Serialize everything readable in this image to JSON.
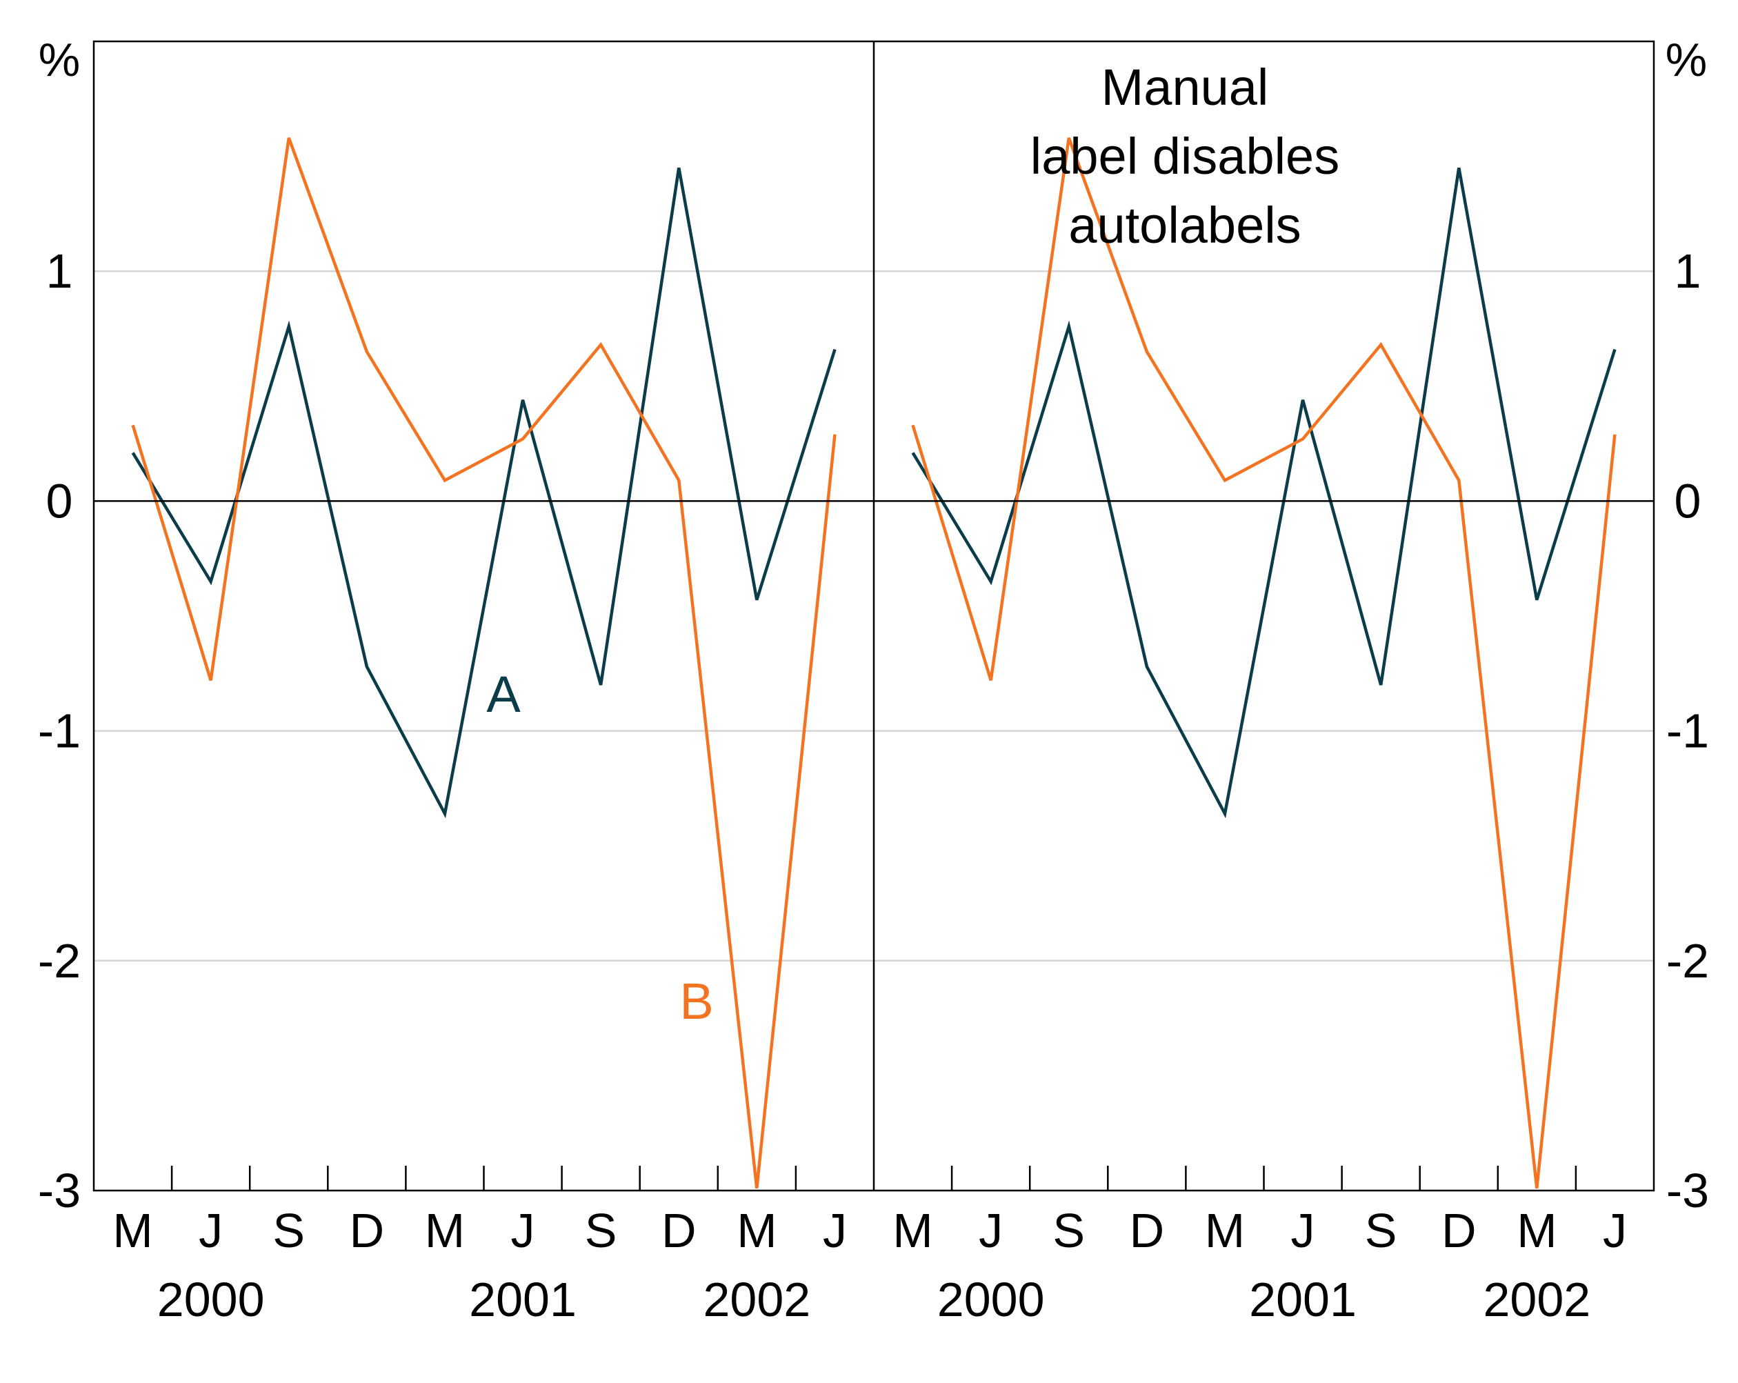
{
  "chart_data": {
    "type": "line",
    "y_unit_left": "%",
    "y_unit_right": "%",
    "ylim": [
      -3,
      2
    ],
    "yticks": [
      1,
      0,
      -1,
      -2,
      -3
    ],
    "ytick_labels": [
      "1",
      "0",
      "-1",
      "-2",
      "-3"
    ],
    "gridlines": true,
    "x": [
      "2000-03",
      "2000-06",
      "2000-09",
      "2000-12",
      "2001-03",
      "2001-06",
      "2001-09",
      "2001-12",
      "2002-03",
      "2002-06"
    ],
    "xtick_labels": [
      "M",
      "J",
      "S",
      "D",
      "M",
      "J",
      "S",
      "D",
      "M",
      "J"
    ],
    "year_labels": [
      "2000",
      "2001",
      "2002"
    ],
    "panels": [
      {
        "series": [
          {
            "name": "A",
            "color": "#0b3c49",
            "values": [
              0.21,
              -0.35,
              0.76,
              -0.72,
              -1.36,
              0.44,
              -0.8,
              1.45,
              -0.43,
              0.66
            ]
          },
          {
            "name": "B",
            "color": "#f47321",
            "values": [
              0.33,
              -0.78,
              1.58,
              0.65,
              0.09,
              0.27,
              0.68,
              0.09,
              -2.99,
              0.29
            ]
          }
        ],
        "annotation": []
      },
      {
        "series": [
          {
            "color": "#0b3c49",
            "values": [
              0.21,
              -0.35,
              0.76,
              -0.72,
              -1.36,
              0.44,
              -0.8,
              1.45,
              -0.43,
              0.66
            ]
          },
          {
            "color": "#f47321",
            "values": [
              0.33,
              -0.78,
              1.58,
              0.65,
              0.09,
              0.27,
              0.68,
              0.09,
              -2.99,
              0.29
            ]
          }
        ],
        "annotation": [
          "Manual",
          "label disables",
          "autolabels"
        ]
      }
    ]
  }
}
